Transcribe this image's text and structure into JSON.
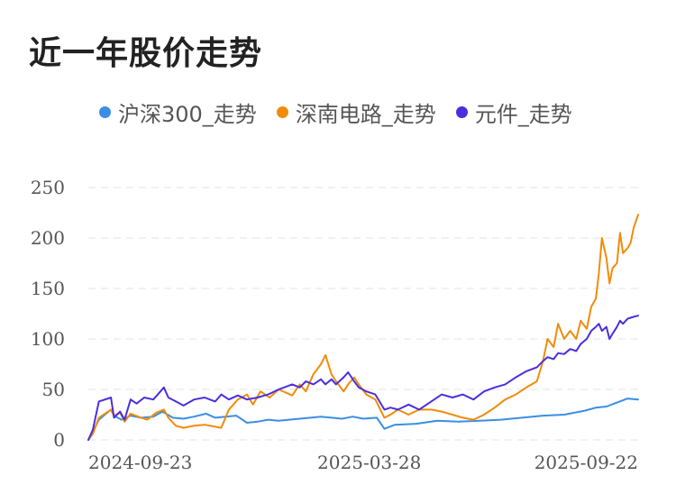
{
  "title": "近一年股价走势",
  "chart_data": {
    "type": "line",
    "title": "近一年股价走势",
    "xlabel": "",
    "ylabel": "",
    "ylim": [
      0,
      250
    ],
    "yticks": [
      0,
      50,
      100,
      150,
      200,
      250
    ],
    "xticks": [
      "2024-09-23",
      "2025-03-28",
      "2025-09-22"
    ],
    "x_range": [
      "2024-09-23",
      "2025-09-22"
    ],
    "grid": "horizontal-dashed",
    "legend_position": "top",
    "series": [
      {
        "name": "沪深300_走势",
        "color": "#3a8ee6",
        "points": [
          [
            "2024-09-23",
            0
          ],
          [
            "2024-09-26",
            8
          ],
          [
            "2024-09-30",
            20
          ],
          [
            "2024-10-08",
            30
          ],
          [
            "2024-10-10",
            24
          ],
          [
            "2024-10-15",
            20
          ],
          [
            "2024-10-21",
            24
          ],
          [
            "2024-10-28",
            22
          ],
          [
            "2024-11-05",
            23
          ],
          [
            "2024-11-11",
            28
          ],
          [
            "2024-11-18",
            22
          ],
          [
            "2024-11-25",
            21
          ],
          [
            "2024-12-02",
            23
          ],
          [
            "2024-12-10",
            26
          ],
          [
            "2024-12-16",
            22
          ],
          [
            "2024-12-23",
            23
          ],
          [
            "2024-12-30",
            24
          ],
          [
            "2025-01-06",
            17
          ],
          [
            "2025-01-13",
            18
          ],
          [
            "2025-01-20",
            20
          ],
          [
            "2025-01-27",
            19
          ],
          [
            "2025-02-10",
            21
          ],
          [
            "2025-02-24",
            23
          ],
          [
            "2025-03-10",
            21
          ],
          [
            "2025-03-17",
            23
          ],
          [
            "2025-03-24",
            21
          ],
          [
            "2025-04-02",
            22
          ],
          [
            "2025-04-07",
            11
          ],
          [
            "2025-04-14",
            15
          ],
          [
            "2025-04-28",
            16
          ],
          [
            "2025-05-12",
            19
          ],
          [
            "2025-05-26",
            18
          ],
          [
            "2025-06-09",
            19
          ],
          [
            "2025-06-23",
            20
          ],
          [
            "2025-07-07",
            22
          ],
          [
            "2025-07-21",
            24
          ],
          [
            "2025-08-04",
            25
          ],
          [
            "2025-08-18",
            29
          ],
          [
            "2025-08-25",
            32
          ],
          [
            "2025-09-01",
            33
          ],
          [
            "2025-09-08",
            37
          ],
          [
            "2025-09-15",
            41
          ],
          [
            "2025-09-22",
            40
          ]
        ]
      },
      {
        "name": "深南电路_走势",
        "color": "#f08c0a",
        "points": [
          [
            "2024-09-23",
            0
          ],
          [
            "2024-09-26",
            6
          ],
          [
            "2024-09-30",
            22
          ],
          [
            "2024-10-08",
            30
          ],
          [
            "2024-10-10",
            24
          ],
          [
            "2024-10-14",
            27
          ],
          [
            "2024-10-17",
            18
          ],
          [
            "2024-10-21",
            26
          ],
          [
            "2024-10-28",
            22
          ],
          [
            "2024-11-01",
            20
          ],
          [
            "2024-11-07",
            27
          ],
          [
            "2024-11-12",
            30
          ],
          [
            "2024-11-15",
            22
          ],
          [
            "2024-11-20",
            14
          ],
          [
            "2024-11-25",
            12
          ],
          [
            "2024-12-02",
            14
          ],
          [
            "2024-12-09",
            15
          ],
          [
            "2024-12-16",
            13
          ],
          [
            "2024-12-20",
            12
          ],
          [
            "2024-12-25",
            30
          ],
          [
            "2024-12-31",
            40
          ],
          [
            "2025-01-06",
            45
          ],
          [
            "2025-01-10",
            35
          ],
          [
            "2025-01-15",
            48
          ],
          [
            "2025-01-21",
            42
          ],
          [
            "2025-01-27",
            50
          ],
          [
            "2025-02-05",
            44
          ],
          [
            "2025-02-10",
            55
          ],
          [
            "2025-02-14",
            48
          ],
          [
            "2025-02-19",
            65
          ],
          [
            "2025-02-24",
            75
          ],
          [
            "2025-02-27",
            84
          ],
          [
            "2025-03-03",
            65
          ],
          [
            "2025-03-06",
            58
          ],
          [
            "2025-03-11",
            48
          ],
          [
            "2025-03-14",
            55
          ],
          [
            "2025-03-18",
            62
          ],
          [
            "2025-03-21",
            55
          ],
          [
            "2025-03-26",
            45
          ],
          [
            "2025-04-01",
            40
          ],
          [
            "2025-04-07",
            22
          ],
          [
            "2025-04-11",
            25
          ],
          [
            "2025-04-16",
            30
          ],
          [
            "2025-04-23",
            25
          ],
          [
            "2025-04-30",
            30
          ],
          [
            "2025-05-08",
            30
          ],
          [
            "2025-05-15",
            28
          ],
          [
            "2025-05-22",
            25
          ],
          [
            "2025-05-29",
            22
          ],
          [
            "2025-06-05",
            20
          ],
          [
            "2025-06-12",
            25
          ],
          [
            "2025-06-19",
            32
          ],
          [
            "2025-06-26",
            40
          ],
          [
            "2025-07-03",
            45
          ],
          [
            "2025-07-10",
            52
          ],
          [
            "2025-07-17",
            58
          ],
          [
            "2025-07-21",
            78
          ],
          [
            "2025-07-24",
            100
          ],
          [
            "2025-07-28",
            92
          ],
          [
            "2025-07-31",
            115
          ],
          [
            "2025-08-04",
            100
          ],
          [
            "2025-08-08",
            108
          ],
          [
            "2025-08-12",
            100
          ],
          [
            "2025-08-15",
            118
          ],
          [
            "2025-08-19",
            110
          ],
          [
            "2025-08-22",
            132
          ],
          [
            "2025-08-25",
            140
          ],
          [
            "2025-08-27",
            165
          ],
          [
            "2025-08-29",
            200
          ],
          [
            "2025-09-01",
            180
          ],
          [
            "2025-09-03",
            155
          ],
          [
            "2025-09-05",
            170
          ],
          [
            "2025-09-08",
            175
          ],
          [
            "2025-09-10",
            205
          ],
          [
            "2025-09-12",
            185
          ],
          [
            "2025-09-15",
            190
          ],
          [
            "2025-09-17",
            195
          ],
          [
            "2025-09-19",
            210
          ],
          [
            "2025-09-22",
            223
          ]
        ]
      },
      {
        "name": "元件_走势",
        "color": "#4a2ee0",
        "points": [
          [
            "2024-09-23",
            0
          ],
          [
            "2024-09-26",
            10
          ],
          [
            "2024-09-30",
            38
          ],
          [
            "2024-10-08",
            42
          ],
          [
            "2024-10-10",
            22
          ],
          [
            "2024-10-14",
            28
          ],
          [
            "2024-10-17",
            20
          ],
          [
            "2024-10-21",
            40
          ],
          [
            "2024-10-25",
            36
          ],
          [
            "2024-10-30",
            42
          ],
          [
            "2024-11-05",
            40
          ],
          [
            "2024-11-08",
            45
          ],
          [
            "2024-11-12",
            52
          ],
          [
            "2024-11-15",
            42
          ],
          [
            "2024-11-20",
            38
          ],
          [
            "2024-11-25",
            34
          ],
          [
            "2024-12-02",
            40
          ],
          [
            "2024-12-09",
            42
          ],
          [
            "2024-12-16",
            38
          ],
          [
            "2024-12-20",
            45
          ],
          [
            "2024-12-25",
            40
          ],
          [
            "2024-12-31",
            44
          ],
          [
            "2025-01-06",
            40
          ],
          [
            "2025-01-13",
            42
          ],
          [
            "2025-01-20",
            45
          ],
          [
            "2025-01-27",
            50
          ],
          [
            "2025-02-05",
            55
          ],
          [
            "2025-02-10",
            52
          ],
          [
            "2025-02-14",
            58
          ],
          [
            "2025-02-19",
            55
          ],
          [
            "2025-02-24",
            60
          ],
          [
            "2025-02-27",
            55
          ],
          [
            "2025-03-03",
            60
          ],
          [
            "2025-03-06",
            55
          ],
          [
            "2025-03-11",
            62
          ],
          [
            "2025-03-14",
            67
          ],
          [
            "2025-03-18",
            58
          ],
          [
            "2025-03-21",
            52
          ],
          [
            "2025-03-26",
            48
          ],
          [
            "2025-04-01",
            45
          ],
          [
            "2025-04-07",
            30
          ],
          [
            "2025-04-11",
            32
          ],
          [
            "2025-04-16",
            30
          ],
          [
            "2025-04-23",
            35
          ],
          [
            "2025-04-30",
            30
          ],
          [
            "2025-05-08",
            38
          ],
          [
            "2025-05-15",
            45
          ],
          [
            "2025-05-22",
            42
          ],
          [
            "2025-05-29",
            45
          ],
          [
            "2025-06-05",
            40
          ],
          [
            "2025-06-12",
            48
          ],
          [
            "2025-06-19",
            52
          ],
          [
            "2025-06-26",
            55
          ],
          [
            "2025-07-03",
            62
          ],
          [
            "2025-07-10",
            68
          ],
          [
            "2025-07-17",
            72
          ],
          [
            "2025-07-21",
            78
          ],
          [
            "2025-07-24",
            82
          ],
          [
            "2025-07-28",
            80
          ],
          [
            "2025-07-31",
            86
          ],
          [
            "2025-08-04",
            85
          ],
          [
            "2025-08-08",
            90
          ],
          [
            "2025-08-12",
            88
          ],
          [
            "2025-08-15",
            95
          ],
          [
            "2025-08-19",
            100
          ],
          [
            "2025-08-22",
            108
          ],
          [
            "2025-08-25",
            112
          ],
          [
            "2025-08-27",
            115
          ],
          [
            "2025-08-29",
            108
          ],
          [
            "2025-09-01",
            112
          ],
          [
            "2025-09-03",
            100
          ],
          [
            "2025-09-05",
            105
          ],
          [
            "2025-09-08",
            112
          ],
          [
            "2025-09-10",
            118
          ],
          [
            "2025-09-12",
            115
          ],
          [
            "2025-09-15",
            120
          ],
          [
            "2025-09-17",
            121
          ],
          [
            "2025-09-19",
            122
          ],
          [
            "2025-09-22",
            123
          ]
        ]
      }
    ]
  }
}
